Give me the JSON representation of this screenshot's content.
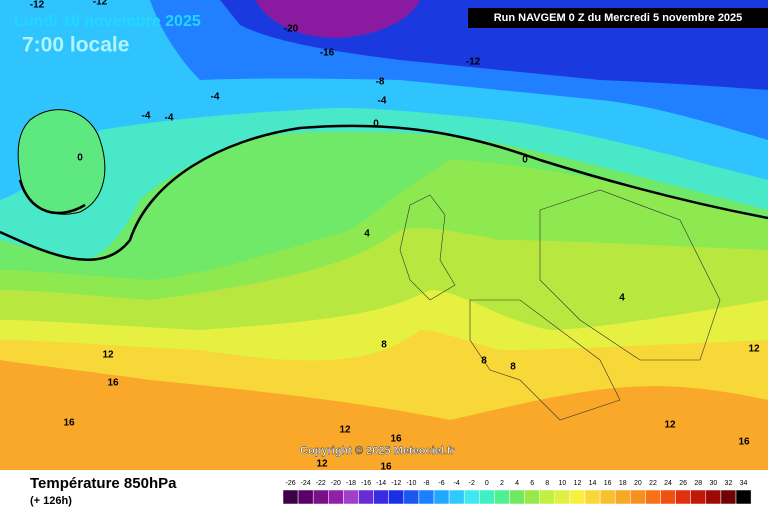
{
  "header": {
    "date": "Lundi 10 novembre 2025",
    "time": "7:00 locale",
    "run": "Run NAVGEM 0 Z du Mercredi 5 novembre 2025"
  },
  "contour_labels": [
    -12,
    -12,
    -20,
    -16,
    -12,
    -8,
    -4,
    -4,
    -4,
    -4,
    0,
    0,
    0,
    4,
    4,
    8,
    8,
    8,
    12,
    12,
    12,
    12,
    12,
    16,
    16,
    16,
    16,
    16
  ],
  "copyright": "Copyright © 2025 Meteociel.fr",
  "footer": {
    "title": "Température 850hPa",
    "subtitle": "(+ 126h)"
  },
  "legend": {
    "values": [
      -26,
      -24,
      -22,
      -20,
      -18,
      -16,
      -14,
      -12,
      -10,
      -8,
      -6,
      -4,
      -2,
      0,
      2,
      4,
      6,
      8,
      10,
      12,
      14,
      16,
      18,
      20,
      22,
      24,
      26,
      28,
      30,
      32,
      34
    ],
    "colors": [
      "#3c0046",
      "#5a0068",
      "#78108a",
      "#9020a8",
      "#a040c8",
      "#6a2ad8",
      "#3a2ae0",
      "#1a30e8",
      "#1a58f0",
      "#1a80ff",
      "#20a8ff",
      "#30c8ff",
      "#40e8f0",
      "#40f0c0",
      "#50f090",
      "#70e860",
      "#98e848",
      "#c0f040",
      "#e0f040",
      "#f8f040",
      "#f8d838",
      "#f8c030",
      "#f8a828",
      "#f89020",
      "#f87018",
      "#f05010",
      "#e03010",
      "#c01808",
      "#a00808",
      "#700404",
      "#000000"
    ]
  }
}
